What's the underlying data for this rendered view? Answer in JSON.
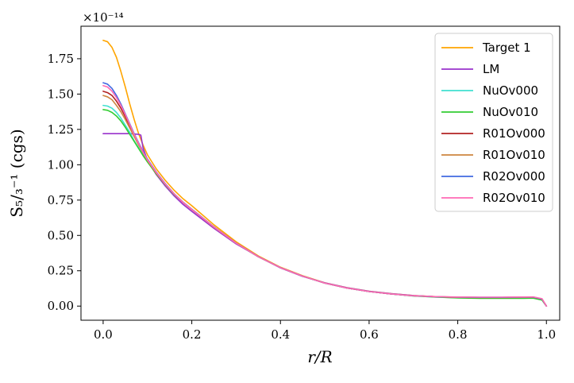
{
  "chart_data": {
    "type": "line",
    "xlabel": "r/R",
    "ylabel": "S₅/₃⁻¹ (cgs)",
    "y_multiplier": "×10⁻¹⁴",
    "xlim": [
      -0.05,
      1.03
    ],
    "ylim": [
      -0.1,
      1.98
    ],
    "x_ticks": [
      "0.0",
      "0.2",
      "0.4",
      "0.6",
      "0.8",
      "1.0"
    ],
    "x_tick_values": [
      0.0,
      0.2,
      0.4,
      0.6,
      0.8,
      1.0
    ],
    "y_ticks": [
      "0.00",
      "0.25",
      "0.50",
      "0.75",
      "1.00",
      "1.25",
      "1.50",
      "1.75"
    ],
    "y_tick_values": [
      0.0,
      0.25,
      0.5,
      0.75,
      1.0,
      1.25,
      1.5,
      1.75
    ],
    "grid": false,
    "legend_position": "top-right",
    "series": [
      {
        "name": "Target 1",
        "color": "#ffa500",
        "x": [
          0.0,
          0.01,
          0.02,
          0.03,
          0.04,
          0.05,
          0.06,
          0.07,
          0.08,
          0.09,
          0.1,
          0.12,
          0.14,
          0.16,
          0.18,
          0.2,
          0.25,
          0.3,
          0.35,
          0.4,
          0.45,
          0.5,
          0.55,
          0.6,
          0.65,
          0.7,
          0.75,
          0.8,
          0.85,
          0.9,
          0.95,
          0.97,
          0.99,
          1.0
        ],
        "y": [
          1.88,
          1.87,
          1.83,
          1.76,
          1.66,
          1.55,
          1.43,
          1.32,
          1.22,
          1.14,
          1.07,
          0.97,
          0.89,
          0.82,
          0.76,
          0.71,
          0.575,
          0.455,
          0.355,
          0.275,
          0.215,
          0.165,
          0.13,
          0.105,
          0.088,
          0.075,
          0.067,
          0.063,
          0.061,
          0.061,
          0.062,
          0.063,
          0.05,
          0.0
        ]
      },
      {
        "name": "LM",
        "color": "#9932cc",
        "x": [
          0.0,
          0.02,
          0.04,
          0.06,
          0.08,
          0.085,
          0.09,
          0.1,
          0.12,
          0.14,
          0.16,
          0.18,
          0.2,
          0.25,
          0.3,
          0.35,
          0.4,
          0.45,
          0.5,
          0.55,
          0.6,
          0.65,
          0.7,
          0.75,
          0.8,
          0.85,
          0.9,
          0.95,
          0.97,
          0.99,
          1.0
        ],
        "y": [
          1.22,
          1.22,
          1.22,
          1.22,
          1.215,
          1.21,
          1.12,
          1.03,
          0.93,
          0.85,
          0.78,
          0.72,
          0.67,
          0.55,
          0.44,
          0.35,
          0.27,
          0.21,
          0.165,
          0.13,
          0.105,
          0.088,
          0.075,
          0.066,
          0.06,
          0.058,
          0.058,
          0.058,
          0.058,
          0.045,
          0.0
        ]
      },
      {
        "name": "NuOv000",
        "color": "#40e0d0",
        "x": [
          0.0,
          0.01,
          0.02,
          0.03,
          0.04,
          0.05,
          0.06,
          0.07,
          0.08,
          0.09,
          0.1,
          0.12,
          0.14,
          0.16,
          0.18,
          0.2,
          0.25,
          0.3,
          0.35,
          0.4,
          0.45,
          0.5,
          0.55,
          0.6,
          0.65,
          0.7,
          0.75,
          0.8,
          0.85,
          0.9,
          0.95,
          0.97,
          0.99,
          1.0
        ],
        "y": [
          1.42,
          1.415,
          1.4,
          1.37,
          1.33,
          1.28,
          1.23,
          1.17,
          1.12,
          1.07,
          1.02,
          0.94,
          0.86,
          0.79,
          0.735,
          0.685,
          0.56,
          0.445,
          0.35,
          0.272,
          0.212,
          0.163,
          0.128,
          0.103,
          0.086,
          0.072,
          0.064,
          0.059,
          0.057,
          0.057,
          0.057,
          0.058,
          0.045,
          0.0
        ]
      },
      {
        "name": "NuOv010",
        "color": "#32cd32",
        "x": [
          0.0,
          0.01,
          0.02,
          0.03,
          0.04,
          0.05,
          0.06,
          0.07,
          0.08,
          0.09,
          0.1,
          0.12,
          0.14,
          0.16,
          0.18,
          0.2,
          0.25,
          0.3,
          0.35,
          0.4,
          0.45,
          0.5,
          0.55,
          0.6,
          0.65,
          0.7,
          0.75,
          0.8,
          0.85,
          0.9,
          0.95,
          0.97,
          0.99,
          1.0
        ],
        "y": [
          1.39,
          1.385,
          1.37,
          1.345,
          1.31,
          1.265,
          1.215,
          1.165,
          1.115,
          1.065,
          1.02,
          0.935,
          0.86,
          0.79,
          0.735,
          0.685,
          0.56,
          0.445,
          0.35,
          0.272,
          0.212,
          0.163,
          0.128,
          0.103,
          0.086,
          0.072,
          0.064,
          0.058,
          0.055,
          0.055,
          0.055,
          0.056,
          0.043,
          0.0
        ]
      },
      {
        "name": "R01Ov000",
        "color": "#b22222",
        "x": [
          0.0,
          0.01,
          0.02,
          0.03,
          0.04,
          0.05,
          0.06,
          0.07,
          0.08,
          0.09,
          0.1,
          0.12,
          0.14,
          0.16,
          0.18,
          0.2,
          0.25,
          0.3,
          0.35,
          0.4,
          0.45,
          0.5,
          0.55,
          0.6,
          0.65,
          0.7,
          0.75,
          0.8,
          0.85,
          0.9,
          0.95,
          0.97,
          0.99,
          1.0
        ],
        "y": [
          1.52,
          1.51,
          1.49,
          1.45,
          1.4,
          1.34,
          1.27,
          1.21,
          1.15,
          1.09,
          1.035,
          0.945,
          0.865,
          0.795,
          0.735,
          0.685,
          0.56,
          0.445,
          0.35,
          0.272,
          0.212,
          0.163,
          0.128,
          0.103,
          0.086,
          0.073,
          0.066,
          0.062,
          0.061,
          0.061,
          0.062,
          0.063,
          0.05,
          0.0
        ]
      },
      {
        "name": "R01Ov010",
        "color": "#cd853f",
        "x": [
          0.0,
          0.01,
          0.02,
          0.03,
          0.04,
          0.05,
          0.06,
          0.07,
          0.08,
          0.09,
          0.1,
          0.12,
          0.14,
          0.16,
          0.18,
          0.2,
          0.25,
          0.3,
          0.35,
          0.4,
          0.45,
          0.5,
          0.55,
          0.6,
          0.65,
          0.7,
          0.75,
          0.8,
          0.85,
          0.9,
          0.95,
          0.97,
          0.99,
          1.0
        ],
        "y": [
          1.49,
          1.48,
          1.46,
          1.42,
          1.375,
          1.32,
          1.26,
          1.2,
          1.14,
          1.085,
          1.03,
          0.94,
          0.862,
          0.792,
          0.733,
          0.683,
          0.558,
          0.444,
          0.349,
          0.272,
          0.212,
          0.163,
          0.128,
          0.103,
          0.086,
          0.073,
          0.066,
          0.062,
          0.061,
          0.061,
          0.062,
          0.063,
          0.05,
          0.0
        ]
      },
      {
        "name": "R02Ov000",
        "color": "#4169e1",
        "x": [
          0.0,
          0.01,
          0.02,
          0.03,
          0.04,
          0.05,
          0.06,
          0.07,
          0.08,
          0.09,
          0.1,
          0.12,
          0.14,
          0.16,
          0.18,
          0.2,
          0.25,
          0.3,
          0.35,
          0.4,
          0.45,
          0.5,
          0.55,
          0.6,
          0.65,
          0.7,
          0.75,
          0.8,
          0.85,
          0.9,
          0.95,
          0.97,
          0.99,
          1.0
        ],
        "y": [
          1.58,
          1.57,
          1.54,
          1.49,
          1.43,
          1.36,
          1.29,
          1.22,
          1.155,
          1.095,
          1.04,
          0.948,
          0.866,
          0.795,
          0.735,
          0.685,
          0.56,
          0.445,
          0.35,
          0.272,
          0.212,
          0.163,
          0.128,
          0.103,
          0.086,
          0.073,
          0.066,
          0.063,
          0.062,
          0.062,
          0.063,
          0.064,
          0.05,
          0.0
        ]
      },
      {
        "name": "R02Ov010",
        "color": "#ff69b4",
        "x": [
          0.0,
          0.01,
          0.02,
          0.03,
          0.04,
          0.05,
          0.06,
          0.07,
          0.08,
          0.09,
          0.1,
          0.12,
          0.14,
          0.16,
          0.18,
          0.2,
          0.25,
          0.3,
          0.35,
          0.4,
          0.45,
          0.5,
          0.55,
          0.6,
          0.65,
          0.7,
          0.75,
          0.8,
          0.85,
          0.9,
          0.95,
          0.97,
          0.99,
          1.0
        ],
        "y": [
          1.56,
          1.55,
          1.52,
          1.475,
          1.42,
          1.355,
          1.285,
          1.215,
          1.15,
          1.09,
          1.035,
          0.945,
          0.864,
          0.794,
          0.734,
          0.684,
          0.559,
          0.445,
          0.35,
          0.272,
          0.212,
          0.163,
          0.128,
          0.103,
          0.086,
          0.073,
          0.067,
          0.064,
          0.063,
          0.063,
          0.064,
          0.065,
          0.052,
          0.0
        ]
      }
    ]
  }
}
